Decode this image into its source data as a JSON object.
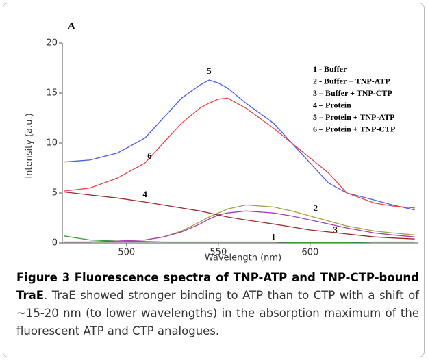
{
  "chart_data": {
    "type": "line",
    "title": "A",
    "xlabel": "Wavelength (nm)",
    "ylabel": "Intensity (a.u.)",
    "x": [
      466,
      480,
      495,
      510,
      520,
      530,
      540,
      545,
      550,
      555,
      565,
      580,
      590,
      600,
      610,
      620,
      635,
      645,
      657
    ],
    "xlim": [
      465,
      659
    ],
    "xticks": [
      500,
      550,
      600
    ],
    "ylim": [
      0,
      20
    ],
    "yticks": [
      0,
      5,
      10,
      15,
      20
    ],
    "legend": "upper right",
    "series": [
      {
        "name": "1 - Buffer",
        "label": "1",
        "color": "#2fa02f",
        "values": [
          0.7,
          0.3,
          0.2,
          0.15,
          0.1,
          0.1,
          0.1,
          0.1,
          0.1,
          0.1,
          0.1,
          0.1,
          0.05,
          0.05,
          0.05,
          0.05,
          0.1,
          0.1,
          0.1
        ]
      },
      {
        "name": "2 - Buffer + TNP-ATP",
        "label": "2",
        "color": "#a3a23c",
        "values": [
          0.1,
          0.1,
          0.2,
          0.3,
          0.6,
          1.2,
          2.1,
          2.6,
          3,
          3.4,
          3.8,
          3.6,
          3.2,
          2.7,
          2.2,
          1.7,
          1.2,
          1,
          0.8
        ]
      },
      {
        "name": "3 – Buffer + TNP-CTP",
        "label": "3",
        "color": "#a83cb4",
        "values": [
          0.1,
          0.1,
          0.2,
          0.3,
          0.6,
          1.1,
          1.9,
          2.4,
          2.8,
          3,
          3.2,
          3,
          2.7,
          2.3,
          1.9,
          1.5,
          1,
          0.8,
          0.6
        ]
      },
      {
        "name": "4 – Protein",
        "label": "4",
        "color": "#9a2b2b",
        "values": [
          5.1,
          4.8,
          4.5,
          4.1,
          3.8,
          3.5,
          3.2,
          3,
          2.8,
          2.6,
          2.3,
          1.9,
          1.6,
          1.3,
          1.1,
          0.9,
          0.6,
          0.5,
          0.4
        ]
      },
      {
        "name": "5 – Protein + TNP-ATP",
        "label": "5",
        "color": "#4a5fe6",
        "values": [
          8.1,
          8.3,
          9,
          10.5,
          12.5,
          14.5,
          15.8,
          16.3,
          16,
          15.5,
          14,
          12,
          10,
          8,
          6,
          5,
          4.3,
          3.8,
          3.3
        ]
      },
      {
        "name": "6 – Protein + TNP-CTP",
        "label": "6",
        "color": "#f04242",
        "values": [
          5.2,
          5.5,
          6.5,
          8,
          10,
          12,
          13.5,
          14,
          14.4,
          14.5,
          13.5,
          11.5,
          10,
          8.5,
          7,
          5,
          4,
          3.7,
          3.5
        ]
      }
    ]
  },
  "caption": {
    "label": "Figure 3",
    "title": "Fluorescence spectra of TNP-ATP and TNP-CTP-bound TraE",
    "text": ". TraE showed stronger binding to ATP than to CTP with a shift of ~15-20 nm (to lower wavelengths) in the absorption maximum of the fluorescent ATP and CTP analogues."
  }
}
